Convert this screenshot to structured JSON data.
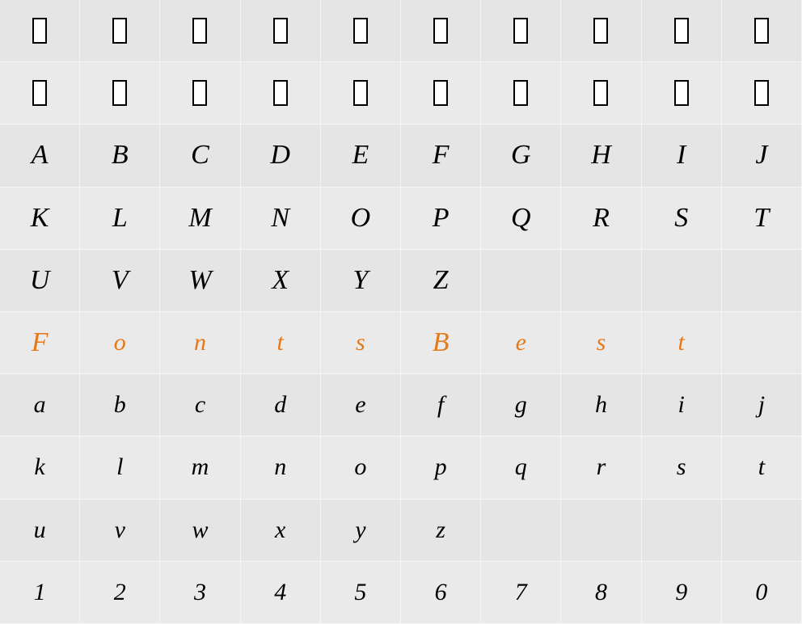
{
  "grid": {
    "cols": 10,
    "rows": 10,
    "background_color": "#e5e5e5",
    "alt_background_color": "#eaeaea",
    "border_color": "#f5f5f5",
    "highlight_color": "#e77817",
    "text_color": "#000000",
    "glyph_fontsize": 34,
    "small_glyph_fontsize": 30,
    "placeholder_box": {
      "width": 18,
      "height": 32,
      "border_color": "#000000",
      "fill": "#ffffff"
    }
  },
  "rows": [
    {
      "alt": false,
      "cells": [
        {
          "type": "placeholder"
        },
        {
          "type": "placeholder"
        },
        {
          "type": "placeholder"
        },
        {
          "type": "placeholder"
        },
        {
          "type": "placeholder"
        },
        {
          "type": "placeholder"
        },
        {
          "type": "placeholder"
        },
        {
          "type": "placeholder"
        },
        {
          "type": "placeholder"
        },
        {
          "type": "placeholder"
        }
      ]
    },
    {
      "alt": true,
      "cells": [
        {
          "type": "placeholder"
        },
        {
          "type": "placeholder"
        },
        {
          "type": "placeholder"
        },
        {
          "type": "placeholder"
        },
        {
          "type": "placeholder"
        },
        {
          "type": "placeholder"
        },
        {
          "type": "placeholder"
        },
        {
          "type": "placeholder"
        },
        {
          "type": "placeholder"
        },
        {
          "type": "placeholder"
        }
      ]
    },
    {
      "alt": false,
      "cells": [
        {
          "type": "glyph",
          "char": "A"
        },
        {
          "type": "glyph",
          "char": "B"
        },
        {
          "type": "glyph",
          "char": "C"
        },
        {
          "type": "glyph",
          "char": "D"
        },
        {
          "type": "glyph",
          "char": "E"
        },
        {
          "type": "glyph",
          "char": "F"
        },
        {
          "type": "glyph",
          "char": "G"
        },
        {
          "type": "glyph",
          "char": "H"
        },
        {
          "type": "glyph",
          "char": "I"
        },
        {
          "type": "glyph",
          "char": "J"
        }
      ]
    },
    {
      "alt": true,
      "cells": [
        {
          "type": "glyph",
          "char": "K"
        },
        {
          "type": "glyph",
          "char": "L"
        },
        {
          "type": "glyph",
          "char": "M"
        },
        {
          "type": "glyph",
          "char": "N"
        },
        {
          "type": "glyph",
          "char": "O"
        },
        {
          "type": "glyph",
          "char": "P"
        },
        {
          "type": "glyph",
          "char": "Q"
        },
        {
          "type": "glyph",
          "char": "R"
        },
        {
          "type": "glyph",
          "char": "S"
        },
        {
          "type": "glyph",
          "char": "T"
        }
      ]
    },
    {
      "alt": false,
      "cells": [
        {
          "type": "glyph",
          "char": "U"
        },
        {
          "type": "glyph",
          "char": "V"
        },
        {
          "type": "glyph",
          "char": "W"
        },
        {
          "type": "glyph",
          "char": "X"
        },
        {
          "type": "glyph",
          "char": "Y"
        },
        {
          "type": "glyph",
          "char": "Z"
        },
        {
          "type": "empty"
        },
        {
          "type": "empty"
        },
        {
          "type": "empty"
        },
        {
          "type": "empty"
        }
      ]
    },
    {
      "alt": true,
      "cells": [
        {
          "type": "glyph",
          "char": "F",
          "highlight": true
        },
        {
          "type": "glyph",
          "char": "o",
          "highlight": true,
          "small": true
        },
        {
          "type": "glyph",
          "char": "n",
          "highlight": true,
          "small": true
        },
        {
          "type": "glyph",
          "char": "t",
          "highlight": true,
          "small": true
        },
        {
          "type": "glyph",
          "char": "s",
          "highlight": true,
          "small": true
        },
        {
          "type": "glyph",
          "char": "B",
          "highlight": true
        },
        {
          "type": "glyph",
          "char": "e",
          "highlight": true,
          "small": true
        },
        {
          "type": "glyph",
          "char": "s",
          "highlight": true,
          "small": true
        },
        {
          "type": "glyph",
          "char": "t",
          "highlight": true,
          "small": true
        },
        {
          "type": "empty"
        }
      ]
    },
    {
      "alt": false,
      "cells": [
        {
          "type": "glyph",
          "char": "a",
          "small": true
        },
        {
          "type": "glyph",
          "char": "b",
          "small": true
        },
        {
          "type": "glyph",
          "char": "c",
          "small": true
        },
        {
          "type": "glyph",
          "char": "d",
          "small": true
        },
        {
          "type": "glyph",
          "char": "e",
          "small": true
        },
        {
          "type": "glyph",
          "char": "f",
          "small": true
        },
        {
          "type": "glyph",
          "char": "g",
          "small": true
        },
        {
          "type": "glyph",
          "char": "h",
          "small": true
        },
        {
          "type": "glyph",
          "char": "i",
          "small": true
        },
        {
          "type": "glyph",
          "char": "j",
          "small": true
        }
      ]
    },
    {
      "alt": true,
      "cells": [
        {
          "type": "glyph",
          "char": "k",
          "small": true
        },
        {
          "type": "glyph",
          "char": "l",
          "small": true
        },
        {
          "type": "glyph",
          "char": "m",
          "small": true
        },
        {
          "type": "glyph",
          "char": "n",
          "small": true
        },
        {
          "type": "glyph",
          "char": "o",
          "small": true
        },
        {
          "type": "glyph",
          "char": "p",
          "small": true
        },
        {
          "type": "glyph",
          "char": "q",
          "small": true
        },
        {
          "type": "glyph",
          "char": "r",
          "small": true
        },
        {
          "type": "glyph",
          "char": "s",
          "small": true
        },
        {
          "type": "glyph",
          "char": "t",
          "small": true
        }
      ]
    },
    {
      "alt": false,
      "cells": [
        {
          "type": "glyph",
          "char": "u",
          "small": true
        },
        {
          "type": "glyph",
          "char": "v",
          "small": true
        },
        {
          "type": "glyph",
          "char": "w",
          "small": true
        },
        {
          "type": "glyph",
          "char": "x",
          "small": true
        },
        {
          "type": "glyph",
          "char": "y",
          "small": true
        },
        {
          "type": "glyph",
          "char": "z",
          "small": true
        },
        {
          "type": "empty"
        },
        {
          "type": "empty"
        },
        {
          "type": "empty"
        },
        {
          "type": "empty"
        }
      ]
    },
    {
      "alt": true,
      "cells": [
        {
          "type": "glyph",
          "char": "1",
          "small": true
        },
        {
          "type": "glyph",
          "char": "2",
          "small": true
        },
        {
          "type": "glyph",
          "char": "3",
          "small": true
        },
        {
          "type": "glyph",
          "char": "4",
          "small": true
        },
        {
          "type": "glyph",
          "char": "5",
          "small": true
        },
        {
          "type": "glyph",
          "char": "6",
          "small": true
        },
        {
          "type": "glyph",
          "char": "7",
          "small": true
        },
        {
          "type": "glyph",
          "char": "8",
          "small": true
        },
        {
          "type": "glyph",
          "char": "9",
          "small": true
        },
        {
          "type": "glyph",
          "char": "0",
          "small": true
        }
      ]
    }
  ]
}
